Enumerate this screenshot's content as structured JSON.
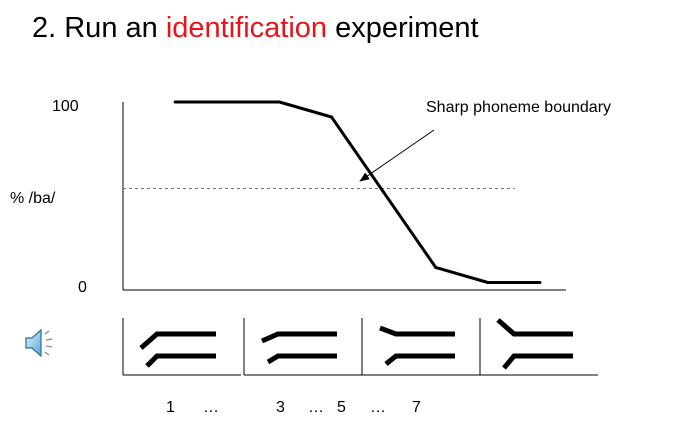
{
  "title": {
    "prefix": "2.  Run an ",
    "accent": "identification",
    "suffix": " experiment",
    "accent_color": "#e8141a"
  },
  "chart_data": {
    "type": "line",
    "x": [
      1,
      3,
      4,
      5,
      6,
      7,
      8
    ],
    "series": [
      {
        "values": [
          100,
          100,
          92,
          52,
          12,
          4,
          4
        ]
      }
    ],
    "title": "",
    "xlabel": "",
    "ylabel": "% /ba/",
    "yticks": [
      "100",
      "0"
    ],
    "ylim": [
      0,
      100
    ],
    "xlim": [
      0,
      8.5
    ],
    "reference_line": {
      "y": 54,
      "style": "dashed"
    },
    "annotation": {
      "text": "Sharp phoneme boundary",
      "points_to": {
        "x": 4.55,
        "y": 58
      }
    },
    "grid": false
  },
  "stimuli": {
    "icon": "speaker-icon",
    "count": 4,
    "labels": [
      {
        "text": "1"
      },
      {
        "text": "…"
      },
      {
        "text": "3"
      },
      {
        "text": "…"
      },
      {
        "text": "5"
      },
      {
        "text": "…"
      },
      {
        "text": "7"
      }
    ]
  }
}
